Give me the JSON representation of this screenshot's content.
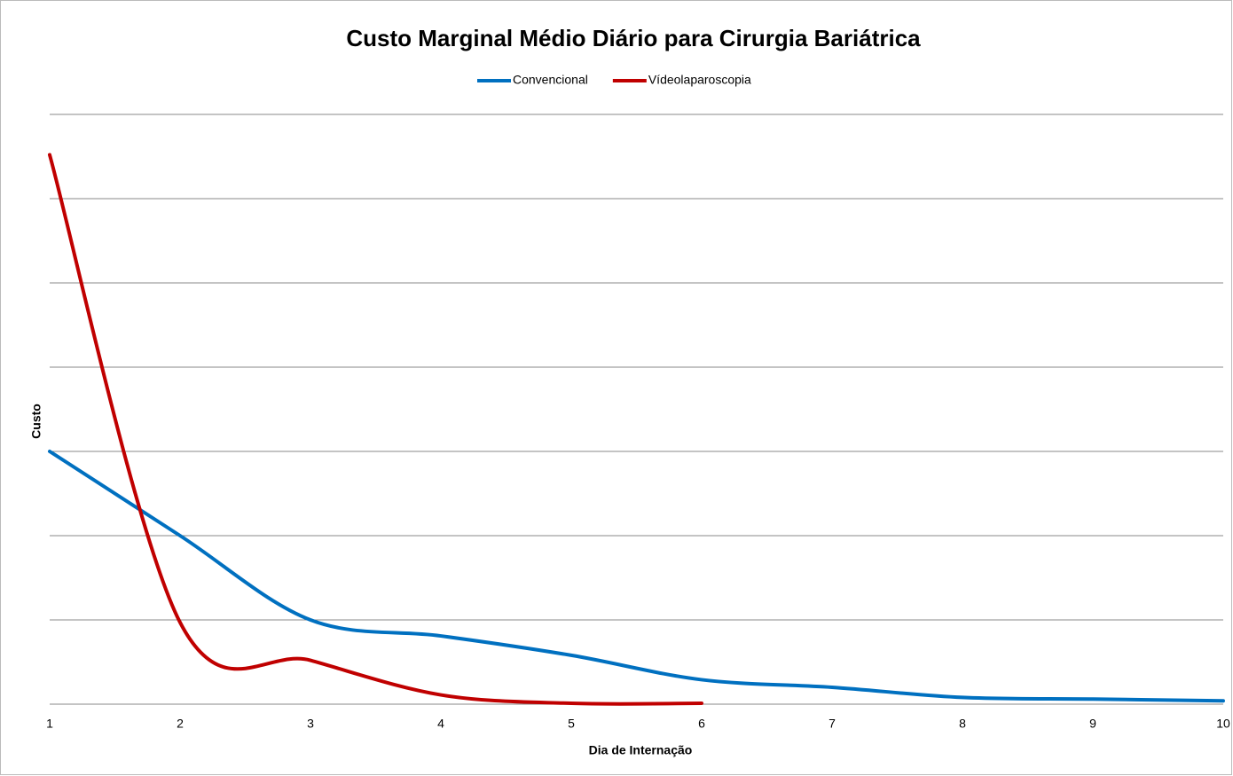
{
  "chart_data": {
    "type": "line",
    "title": "Custo Marginal Médio Diário para Cirurgia Bariátrica",
    "x_label": "Dia de Internação",
    "y_label": "Custo",
    "categories": [
      "1",
      "2",
      "3",
      "4",
      "5",
      "6",
      "7",
      "8",
      "9",
      "10"
    ],
    "series": [
      {
        "name": "Convencional",
        "color": "#0070c0",
        "values": [
          3.0,
          2.0,
          1.0,
          0.81,
          0.58,
          0.29,
          0.2,
          0.08,
          0.06,
          0.04
        ]
      },
      {
        "name": "Vídeolaparoscopia",
        "color": "#c00000",
        "values": [
          6.52,
          0.97,
          0.52,
          0.11,
          0.01,
          0.01,
          null,
          null,
          null,
          null
        ]
      }
    ],
    "ylim": [
      0,
      7
    ],
    "yticks": [
      0,
      1,
      2,
      3,
      4,
      5,
      6,
      7
    ],
    "grid": true,
    "smooth": true,
    "legend": "top"
  }
}
